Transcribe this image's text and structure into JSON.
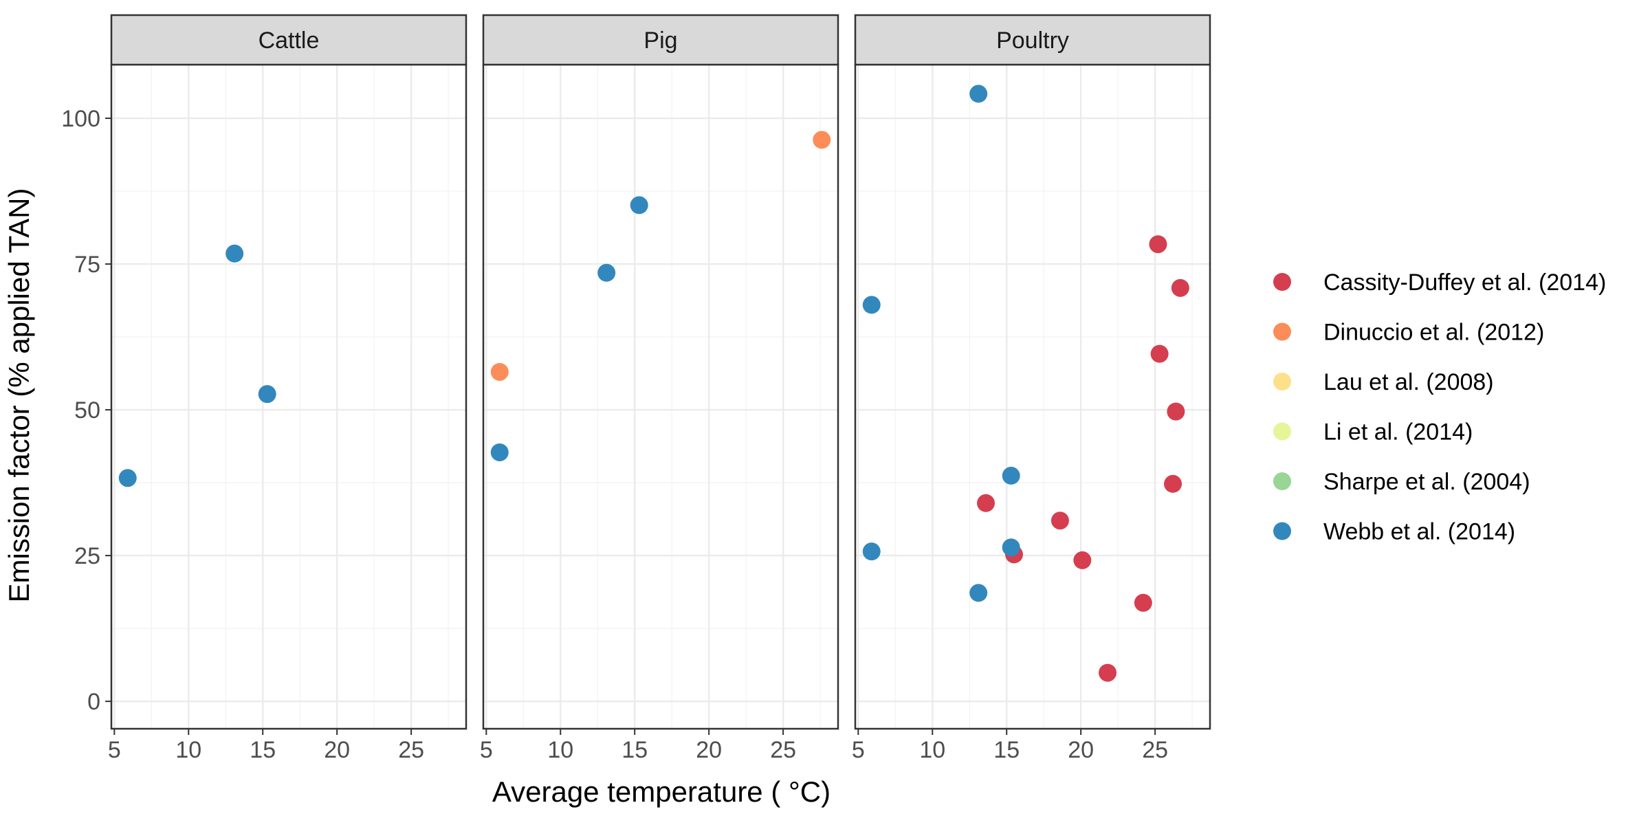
{
  "chart_data": {
    "type": "scatter",
    "xlabel": "Average temperature ( °C)",
    "ylabel": "Emission factor (% applied TAN)",
    "xlim": [
      4.8,
      28.7
    ],
    "ylim": [
      -4.7,
      109.2
    ],
    "x_ticks": [
      5,
      10,
      15,
      20,
      25
    ],
    "y_ticks": [
      0,
      25,
      50,
      75,
      100
    ],
    "grid": true,
    "legend_position": "right",
    "series": [
      {
        "name": "Cassity-Duffey et al. (2014)",
        "color": "#d53e4f"
      },
      {
        "name": "Dinuccio et al. (2012)",
        "color": "#fc8d59"
      },
      {
        "name": "Lau et al. (2008)",
        "color": "#fee08b"
      },
      {
        "name": "Li et al. (2014)",
        "color": "#e6f598"
      },
      {
        "name": "Sharpe et al. (2004)",
        "color": "#99d594"
      },
      {
        "name": "Webb et al. (2014)",
        "color": "#3288bd"
      }
    ],
    "panels": [
      {
        "title": "Cattle",
        "points": [
          {
            "x": 5.9,
            "y": 38.3,
            "series": "Webb et al. (2014)"
          },
          {
            "x": 13.1,
            "y": 76.8,
            "series": "Webb et al. (2014)"
          },
          {
            "x": 15.3,
            "y": 52.7,
            "series": "Webb et al. (2014)"
          }
        ]
      },
      {
        "title": "Pig",
        "points": [
          {
            "x": 5.9,
            "y": 56.5,
            "series": "Dinuccio et al. (2012)"
          },
          {
            "x": 27.6,
            "y": 96.3,
            "series": "Dinuccio et al. (2012)"
          },
          {
            "x": 5.9,
            "y": 42.7,
            "series": "Webb et al. (2014)"
          },
          {
            "x": 13.1,
            "y": 73.5,
            "series": "Webb et al. (2014)"
          },
          {
            "x": 15.3,
            "y": 85.1,
            "series": "Webb et al. (2014)"
          }
        ]
      },
      {
        "title": "Poultry",
        "points": [
          {
            "x": 25.2,
            "y": 78.4,
            "series": "Cassity-Duffey et al. (2014)"
          },
          {
            "x": 26.7,
            "y": 70.9,
            "series": "Cassity-Duffey et al. (2014)"
          },
          {
            "x": 25.3,
            "y": 59.6,
            "series": "Cassity-Duffey et al. (2014)"
          },
          {
            "x": 26.4,
            "y": 49.7,
            "series": "Cassity-Duffey et al. (2014)"
          },
          {
            "x": 26.2,
            "y": 37.3,
            "series": "Cassity-Duffey et al. (2014)"
          },
          {
            "x": 13.6,
            "y": 34.0,
            "series": "Cassity-Duffey et al. (2014)"
          },
          {
            "x": 18.6,
            "y": 31.0,
            "series": "Cassity-Duffey et al. (2014)"
          },
          {
            "x": 15.5,
            "y": 25.2,
            "series": "Cassity-Duffey et al. (2014)"
          },
          {
            "x": 20.1,
            "y": 24.2,
            "series": "Cassity-Duffey et al. (2014)"
          },
          {
            "x": 24.2,
            "y": 16.9,
            "series": "Cassity-Duffey et al. (2014)"
          },
          {
            "x": 21.8,
            "y": 4.9,
            "series": "Cassity-Duffey et al. (2014)"
          },
          {
            "x": 13.1,
            "y": 104.2,
            "series": "Webb et al. (2014)"
          },
          {
            "x": 5.9,
            "y": 68.0,
            "series": "Webb et al. (2014)"
          },
          {
            "x": 15.3,
            "y": 38.7,
            "series": "Webb et al. (2014)"
          },
          {
            "x": 15.3,
            "y": 26.4,
            "series": "Webb et al. (2014)"
          },
          {
            "x": 5.9,
            "y": 25.7,
            "series": "Webb et al. (2014)"
          },
          {
            "x": 13.1,
            "y": 18.6,
            "series": "Webb et al. (2014)"
          }
        ]
      }
    ]
  }
}
